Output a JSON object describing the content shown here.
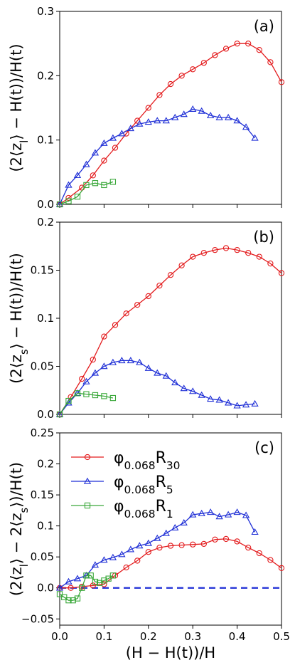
{
  "chart_data": [
    {
      "type": "line",
      "panel_label": "(a)",
      "ylabel": "(2⟨z_l⟩ − H(t))/H(t)",
      "xlim": [
        0,
        0.5
      ],
      "ylim": [
        0,
        0.3
      ],
      "yticks": [
        "0.0",
        "0.1",
        "0.2",
        "0.3"
      ],
      "series": [
        {
          "color": "#e31a1c",
          "marker": "circle",
          "x": [
            0.0,
            0.02,
            0.05,
            0.075,
            0.1,
            0.125,
            0.15,
            0.175,
            0.2,
            0.225,
            0.25,
            0.275,
            0.3,
            0.325,
            0.35,
            0.375,
            0.4,
            0.425,
            0.45,
            0.475,
            0.5
          ],
          "y": [
            0.0,
            0.01,
            0.026,
            0.045,
            0.068,
            0.088,
            0.11,
            0.13,
            0.15,
            0.17,
            0.187,
            0.2,
            0.21,
            0.22,
            0.232,
            0.242,
            0.25,
            0.25,
            0.24,
            0.221,
            0.19
          ]
        },
        {
          "color": "#1f2fd6",
          "marker": "triangle",
          "x": [
            0.0,
            0.02,
            0.04,
            0.06,
            0.08,
            0.1,
            0.12,
            0.14,
            0.16,
            0.18,
            0.2,
            0.22,
            0.24,
            0.26,
            0.28,
            0.3,
            0.32,
            0.34,
            0.36,
            0.38,
            0.4,
            0.42,
            0.44
          ],
          "y": [
            0.0,
            0.03,
            0.045,
            0.062,
            0.08,
            0.095,
            0.103,
            0.11,
            0.118,
            0.125,
            0.128,
            0.13,
            0.13,
            0.135,
            0.14,
            0.148,
            0.145,
            0.138,
            0.135,
            0.135,
            0.13,
            0.12,
            0.103
          ]
        },
        {
          "color": "#3aa83a",
          "marker": "square",
          "x": [
            0.0,
            0.02,
            0.04,
            0.06,
            0.08,
            0.1,
            0.12
          ],
          "y": [
            0.0,
            0.005,
            0.012,
            0.03,
            0.033,
            0.03,
            0.035
          ]
        }
      ]
    },
    {
      "type": "line",
      "panel_label": "(b)",
      "ylabel": "(2⟨z_s⟩ − H(t))/H(t)",
      "xlim": [
        0,
        0.5
      ],
      "ylim": [
        0,
        0.2
      ],
      "yticks": [
        "0.0",
        "0.05",
        "0.1",
        "0.15",
        "0.2"
      ],
      "series": [
        {
          "color": "#e31a1c",
          "marker": "circle",
          "x": [
            0.0,
            0.025,
            0.05,
            0.075,
            0.1,
            0.125,
            0.15,
            0.175,
            0.2,
            0.225,
            0.25,
            0.275,
            0.3,
            0.325,
            0.35,
            0.375,
            0.4,
            0.425,
            0.45,
            0.475,
            0.5
          ],
          "y": [
            0.0,
            0.018,
            0.037,
            0.057,
            0.081,
            0.093,
            0.105,
            0.114,
            0.123,
            0.134,
            0.145,
            0.155,
            0.164,
            0.168,
            0.171,
            0.173,
            0.171,
            0.168,
            0.164,
            0.157,
            0.147
          ]
        },
        {
          "color": "#1f2fd6",
          "marker": "triangle",
          "x": [
            0.0,
            0.02,
            0.04,
            0.06,
            0.08,
            0.1,
            0.12,
            0.14,
            0.16,
            0.18,
            0.2,
            0.22,
            0.24,
            0.26,
            0.28,
            0.3,
            0.32,
            0.34,
            0.36,
            0.38,
            0.4,
            0.42,
            0.44
          ],
          "y": [
            0.0,
            0.012,
            0.022,
            0.034,
            0.043,
            0.05,
            0.054,
            0.056,
            0.056,
            0.054,
            0.048,
            0.043,
            0.04,
            0.033,
            0.027,
            0.024,
            0.02,
            0.016,
            0.015,
            0.012,
            0.009,
            0.01,
            0.011
          ]
        },
        {
          "color": "#3aa83a",
          "marker": "square",
          "x": [
            0.0,
            0.02,
            0.04,
            0.06,
            0.08,
            0.1,
            0.12
          ],
          "y": [
            0.0,
            0.014,
            0.022,
            0.021,
            0.02,
            0.019,
            0.017
          ]
        }
      ]
    },
    {
      "type": "line",
      "panel_label": "(c)",
      "ylabel": "(2⟨z_l⟩ − 2⟨z_s⟩)/H(t)",
      "xlabel": "(H − H(t))/H",
      "xlim": [
        0,
        0.5
      ],
      "ylim": [
        -0.06,
        0.25
      ],
      "yticks": [
        "−0.05",
        "0.0",
        "0.05",
        "0.1",
        "0.15",
        "0.2",
        "0.25"
      ],
      "xticks": [
        "0.0",
        "0.1",
        "0.2",
        "0.3",
        "0.4",
        "0.5"
      ],
      "legend": [
        "φ0.068R30",
        "φ0.068R5",
        "φ0.068R1"
      ],
      "legend_placement": "upper-left",
      "zero_line": {
        "color": "#1f2fd6",
        "style": "dashed",
        "y": 0
      },
      "series": [
        {
          "color": "#e31a1c",
          "marker": "circle",
          "legend_main": "φ",
          "legend_sub1": "0.068",
          "legend_mid": "R",
          "legend_sub2": "30",
          "x": [
            0.0,
            0.025,
            0.05,
            0.075,
            0.1,
            0.125,
            0.15,
            0.175,
            0.2,
            0.225,
            0.25,
            0.275,
            0.3,
            0.325,
            0.35,
            0.375,
            0.4,
            0.425,
            0.45,
            0.475,
            0.5
          ],
          "y": [
            0.0,
            0.0,
            0.002,
            0.004,
            0.006,
            0.02,
            0.033,
            0.044,
            0.058,
            0.065,
            0.068,
            0.069,
            0.07,
            0.071,
            0.078,
            0.079,
            0.075,
            0.065,
            0.056,
            0.045,
            0.032
          ]
        },
        {
          "color": "#1f2fd6",
          "marker": "triangle",
          "legend_main": "φ",
          "legend_sub1": "0.068",
          "legend_mid": "R",
          "legend_sub2": "5",
          "x": [
            0.0,
            0.02,
            0.04,
            0.06,
            0.08,
            0.1,
            0.12,
            0.14,
            0.16,
            0.18,
            0.2,
            0.22,
            0.24,
            0.26,
            0.28,
            0.3,
            0.32,
            0.34,
            0.36,
            0.38,
            0.4,
            0.42,
            0.44
          ],
          "y": [
            0.0,
            0.01,
            0.015,
            0.02,
            0.037,
            0.045,
            0.049,
            0.054,
            0.062,
            0.068,
            0.072,
            0.08,
            0.088,
            0.097,
            0.105,
            0.118,
            0.12,
            0.122,
            0.115,
            0.118,
            0.122,
            0.117,
            0.09
          ]
        },
        {
          "color": "#3aa83a",
          "marker": "square",
          "legend_main": "φ",
          "legend_sub1": "0.068",
          "legend_mid": "R",
          "legend_sub2": "1",
          "x": [
            0.0,
            0.01,
            0.02,
            0.03,
            0.04,
            0.05,
            0.06,
            0.07,
            0.08,
            0.09,
            0.1,
            0.11,
            0.12
          ],
          "y": [
            -0.01,
            -0.015,
            -0.02,
            -0.02,
            -0.017,
            0.0,
            0.02,
            0.02,
            0.01,
            0.008,
            0.012,
            0.015,
            0.02
          ]
        }
      ]
    }
  ]
}
